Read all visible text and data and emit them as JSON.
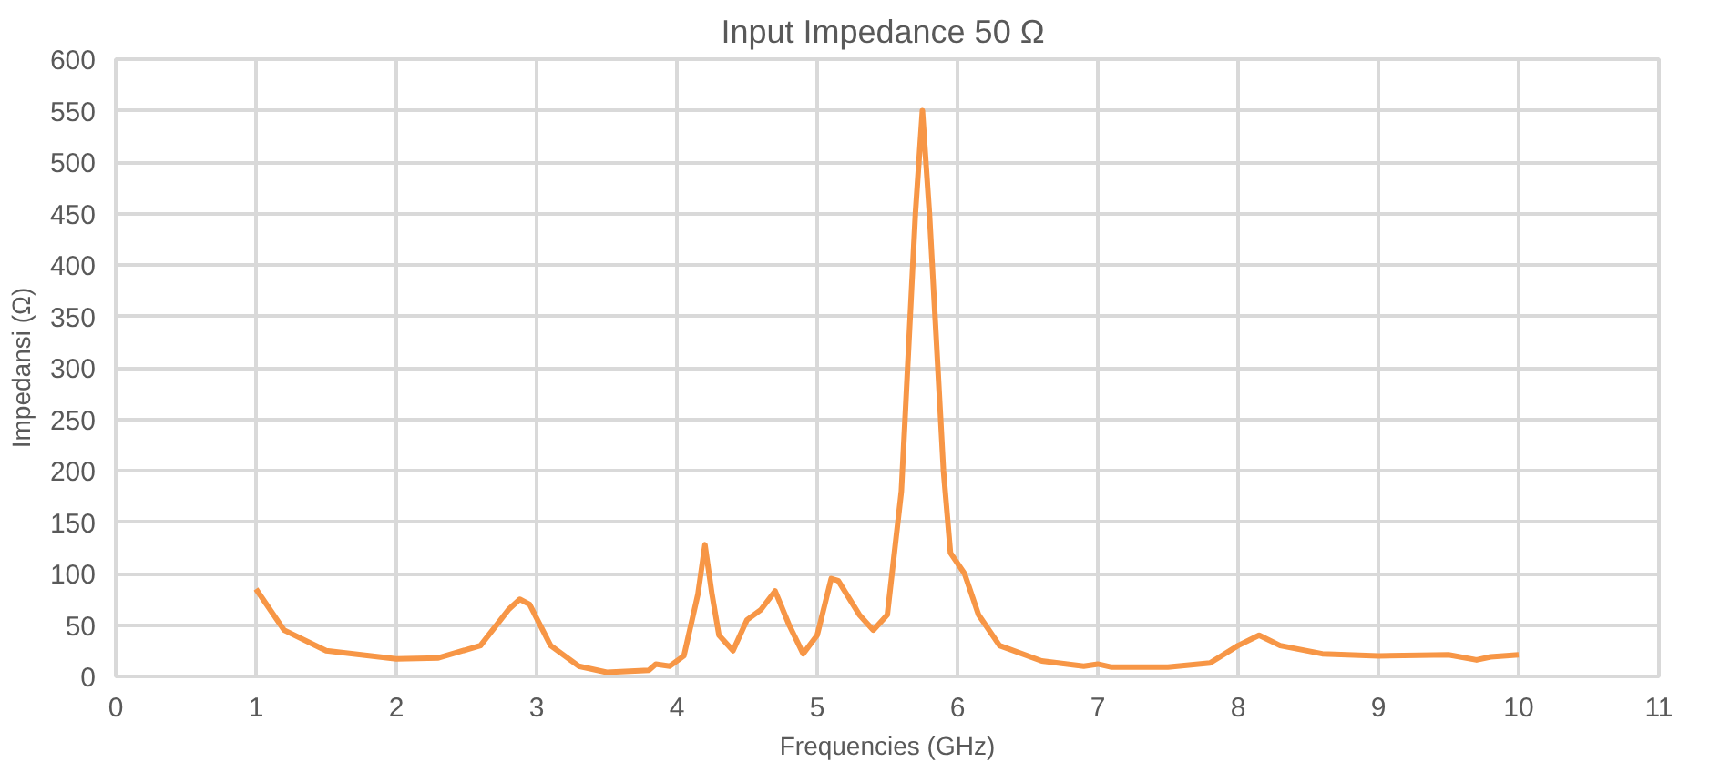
{
  "chart_data": {
    "type": "line",
    "title": "Input Impedance  50 Ω",
    "xlabel": "Frequencies (GHz)",
    "ylabel": "Impedansi (Ω)",
    "xlim": [
      0,
      11
    ],
    "xticks": [
      0,
      1,
      2,
      3,
      4,
      5,
      6,
      7,
      8,
      9,
      10,
      11
    ],
    "ylim": [
      0,
      600
    ],
    "yticks": [
      0,
      50,
      100,
      150,
      200,
      250,
      300,
      350,
      400,
      450,
      500,
      550,
      600
    ],
    "grid": true,
    "series": [
      {
        "color": "#f79646",
        "x": [
          1.0,
          1.2,
          1.5,
          2.0,
          2.3,
          2.6,
          2.8,
          2.88,
          2.95,
          3.1,
          3.3,
          3.5,
          3.8,
          3.85,
          3.95,
          4.05,
          4.15,
          4.2,
          4.25,
          4.3,
          4.4,
          4.5,
          4.6,
          4.7,
          4.8,
          4.9,
          5.0,
          5.1,
          5.15,
          5.3,
          5.4,
          5.5,
          5.6,
          5.7,
          5.75,
          5.8,
          5.9,
          5.95,
          6.05,
          6.15,
          6.3,
          6.6,
          6.9,
          7.0,
          7.1,
          7.5,
          7.8,
          8.0,
          8.15,
          8.3,
          8.6,
          9.0,
          9.5,
          9.7,
          9.8,
          10.0
        ],
        "values": [
          85,
          45,
          25,
          17,
          18,
          30,
          65,
          75,
          70,
          30,
          10,
          4,
          6,
          12,
          10,
          20,
          80,
          128,
          80,
          40,
          25,
          55,
          65,
          83,
          50,
          22,
          40,
          95,
          93,
          60,
          45,
          60,
          180,
          450,
          550,
          450,
          200,
          120,
          100,
          60,
          30,
          15,
          10,
          12,
          9,
          9,
          13,
          30,
          40,
          30,
          22,
          20,
          21,
          16,
          19,
          21
        ]
      }
    ]
  }
}
